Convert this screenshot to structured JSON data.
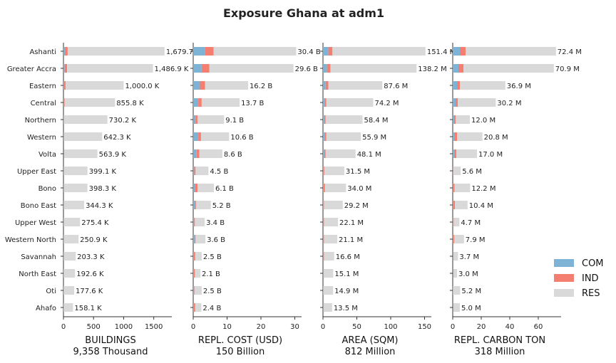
{
  "chart_data": {
    "type": "bar",
    "title": "Exposure Ghana at adm1",
    "categories": [
      "Ashanti",
      "Greater Accra",
      "Eastern",
      "Central",
      "Northern",
      "Western",
      "Volta",
      "Upper East",
      "Bono",
      "Bono East",
      "Upper West",
      "Western North",
      "Savannah",
      "North East",
      "Oti",
      "Ahafo"
    ],
    "legend": {
      "placement": "right",
      "entries": [
        {
          "name": "COM",
          "color": "#7fb3d5"
        },
        {
          "name": "IND",
          "color": "#f47f70"
        },
        {
          "name": "RES",
          "color": "#d9d9d9"
        }
      ]
    },
    "panels": [
      {
        "xlabel": "BUILDINGS",
        "xlabel2": "9,358 Thousand",
        "xlim": [
          0,
          1800
        ],
        "xticks": [
          0,
          500,
          1000,
          1500
        ],
        "series": [
          {
            "name": "COM",
            "values": [
              25,
              20,
              10,
              6,
              6,
              8,
              4,
              2,
              2,
              2,
              1,
              1,
              1,
              1,
              1,
              1
            ]
          },
          {
            "name": "IND",
            "values": [
              45,
              40,
              25,
              14,
              4,
              6,
              10,
              2,
              3,
              2,
              2,
              2,
              2,
              1,
              1,
              1
            ]
          },
          {
            "name": "RES",
            "values": [
              1609.7,
              1426.9,
              965.0,
              835.8,
              720.2,
              628.3,
              549.9,
              395.1,
              393.3,
              340.3,
              272.4,
              247.9,
              200.3,
              190.6,
              175.6,
              156.1
            ]
          }
        ],
        "labels": [
          "1,679.7 K",
          "1,486.9 K",
          "1,000.0 K",
          "855.8 K",
          "730.2 K",
          "642.3 K",
          "563.9 K",
          "399.1 K",
          "398.3 K",
          "344.3 K",
          "275.4 K",
          "250.9 K",
          "203.3 K",
          "192.6 K",
          "177.6 K",
          "158.1 K"
        ]
      },
      {
        "xlabel": "REPL. COST (USD)",
        "xlabel2": "150 Billion",
        "xlim": [
          0,
          32
        ],
        "xticks": [
          0,
          10,
          20,
          30
        ],
        "series": [
          {
            "name": "COM",
            "values": [
              3.5,
              2.5,
              2.0,
              1.5,
              0.7,
              1.5,
              1.0,
              0.3,
              0.5,
              0.7,
              0.3,
              0.4,
              0.2,
              0.2,
              0.3,
              0.2
            ]
          },
          {
            "name": "IND",
            "values": [
              2.5,
              2.3,
              1.5,
              1.0,
              0.6,
              0.8,
              0.8,
              0.4,
              0.8,
              0.2,
              0.2,
              0.3,
              0.4,
              0.3,
              0.1,
              0.4
            ]
          },
          {
            "name": "RES",
            "values": [
              24.4,
              24.8,
              12.7,
              11.2,
              7.8,
              8.3,
              6.8,
              3.8,
              4.8,
              4.3,
              2.9,
              2.9,
              1.9,
              1.6,
              2.1,
              1.8
            ]
          }
        ],
        "labels": [
          "30.4 B",
          "29.6 B",
          "16.2 B",
          "13.7 B",
          "9.1 B",
          "10.6 B",
          "8.6 B",
          "4.5 B",
          "6.1 B",
          "5.2 B",
          "3.4 B",
          "3.6 B",
          "2.5 B",
          "2.1 B",
          "2.5 B",
          "2.4 B"
        ]
      },
      {
        "xlabel": "AREA (SQM)",
        "xlabel2": "812 Million",
        "xlim": [
          0,
          160
        ],
        "xticks": [
          0,
          50,
          100,
          150
        ],
        "series": [
          {
            "name": "COM",
            "values": [
              8,
              6,
              4,
              3,
              2,
              3,
              2,
              1,
              1,
              1,
              0.5,
              0.5,
              0.5,
              0.5,
              0.5,
              0.5
            ]
          },
          {
            "name": "IND",
            "values": [
              6,
              5,
              4,
              2,
              2,
              2,
              2,
              1,
              2,
              0.5,
              1,
              1,
              1,
              0.5,
              0.2,
              0.5
            ]
          },
          {
            "name": "RES",
            "values": [
              137.4,
              127.2,
              79.6,
              69.2,
              54.4,
              50.9,
              44.1,
              29.5,
              31.0,
              27.7,
              20.6,
              19.6,
              15.1,
              14.1,
              14.2,
              12.5
            ]
          }
        ],
        "labels": [
          "151.4 M",
          "138.2 M",
          "87.6 M",
          "74.2 M",
          "58.4 M",
          "55.9 M",
          "48.1 M",
          "31.5 M",
          "34.0 M",
          "29.2 M",
          "22.1 M",
          "21.1 M",
          "16.6 M",
          "15.1 M",
          "14.9 M",
          "13.5 M"
        ]
      },
      {
        "xlabel": "REPL. CARBON TON",
        "xlabel2": "318 Million",
        "xlim": [
          0,
          76
        ],
        "xticks": [
          0,
          20,
          40,
          60
        ],
        "series": [
          {
            "name": "COM",
            "values": [
              5,
              4,
              3,
              2,
              1,
              1.5,
              1.5,
              0.3,
              0.5,
              0.5,
              0.3,
              0.3,
              0.2,
              0.2,
              0.3,
              0.2
            ]
          },
          {
            "name": "IND",
            "values": [
              4,
              3.5,
              2,
              1.5,
              1,
              1.5,
              1,
              0.3,
              0.8,
              1,
              0.4,
              0.8,
              0.3,
              0.3,
              0.1,
              0.3
            ]
          },
          {
            "name": "RES",
            "values": [
              63.4,
              63.4,
              31.9,
              26.7,
              10.0,
              17.8,
              14.5,
              5.0,
              10.9,
              8.9,
              4.0,
              6.8,
              3.2,
              2.5,
              4.8,
              4.5
            ]
          }
        ],
        "labels": [
          "72.4 M",
          "70.9 M",
          "36.9 M",
          "30.2 M",
          "12.0 M",
          "20.8 M",
          "17.0 M",
          "5.6 M",
          "12.2 M",
          "10.4 M",
          "4.7 M",
          "7.9 M",
          "3.7 M",
          "3.0 M",
          "5.2 M",
          "5.0 M"
        ]
      }
    ]
  }
}
